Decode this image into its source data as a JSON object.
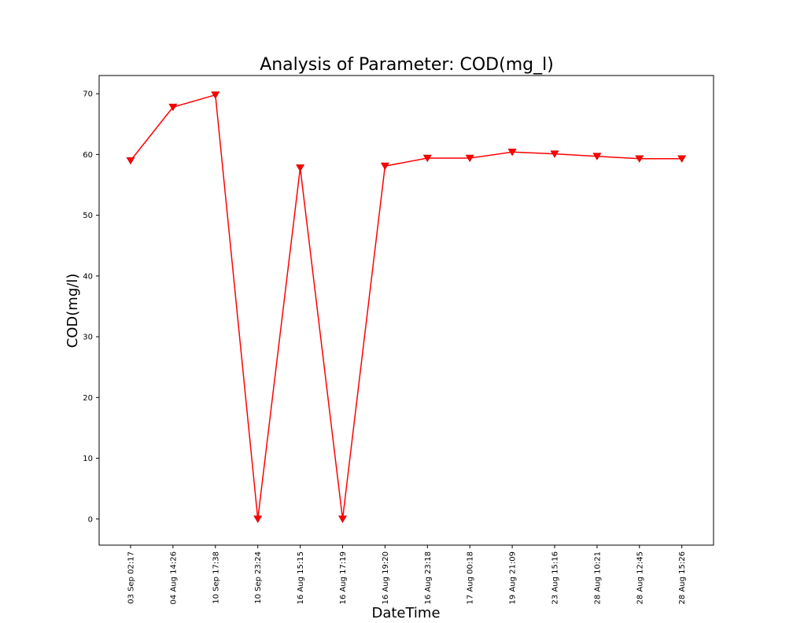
{
  "chart_data": {
    "type": "line",
    "title": "Analysis of Parameter: COD(mg_l)",
    "xlabel": "DateTime",
    "ylabel": "COD(mg/l)",
    "categories": [
      "03 Sep 02:17",
      "04 Aug 14:26",
      "10 Sep 17:38",
      "10 Sep 23:24",
      "16 Aug 15:15",
      "16 Aug 17:19",
      "16 Aug 19:20",
      "16 Aug 23:18",
      "17 Aug 00:18",
      "19 Aug 21:09",
      "23 Aug 15:16",
      "28 Aug 10:21",
      "28 Aug 12:45",
      "28 Aug 15:26"
    ],
    "series": [
      {
        "values": [
          59.0,
          67.8,
          69.8,
          0.0,
          57.8,
          0.0,
          58.1,
          59.4,
          59.4,
          60.4,
          60.1,
          59.7,
          59.3,
          59.3
        ]
      }
    ],
    "ylim": [
      -4.3,
      73.0
    ],
    "yticks": [
      0,
      10,
      20,
      30,
      40,
      50,
      60,
      70
    ],
    "grid": false,
    "colors": {
      "line": "#ff0000",
      "marker": "#ff0000",
      "marker_edge": "#cc0000"
    },
    "marker": "triangle-down"
  }
}
